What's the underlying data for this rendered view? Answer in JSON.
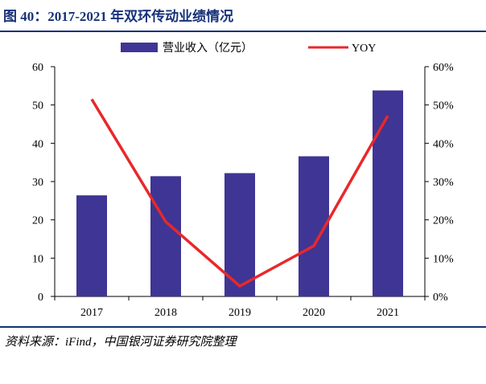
{
  "figure": {
    "title": "图 40：2017-2021 年双环传动业绩情况",
    "source": "资料来源：iFind，中国银河证券研究院整理"
  },
  "colors": {
    "title": "#17317a",
    "bar": "#3f3594",
    "line": "#e8282b",
    "axis": "#000000"
  },
  "chart_data": {
    "type": "bar",
    "categories": [
      "2017",
      "2018",
      "2019",
      "2020",
      "2021"
    ],
    "series": [
      {
        "name": "营业收入（亿元）",
        "type": "bar",
        "axis": "left",
        "values": [
          26.4,
          31.4,
          32.2,
          36.6,
          53.8
        ]
      },
      {
        "name": "YOY",
        "type": "line",
        "axis": "right",
        "values": [
          51.5,
          19.5,
          2.7,
          13.2,
          47.2
        ]
      }
    ],
    "y_left": {
      "lim": [
        0,
        60
      ],
      "ticks": [
        "0",
        "10",
        "20",
        "30",
        "40",
        "50",
        "60"
      ]
    },
    "y_right": {
      "lim": [
        0,
        60
      ],
      "ticks": [
        "0%",
        "10%",
        "20%",
        "30%",
        "40%",
        "50%",
        "60%"
      ]
    },
    "legend_position": "top-center",
    "grid": false
  }
}
